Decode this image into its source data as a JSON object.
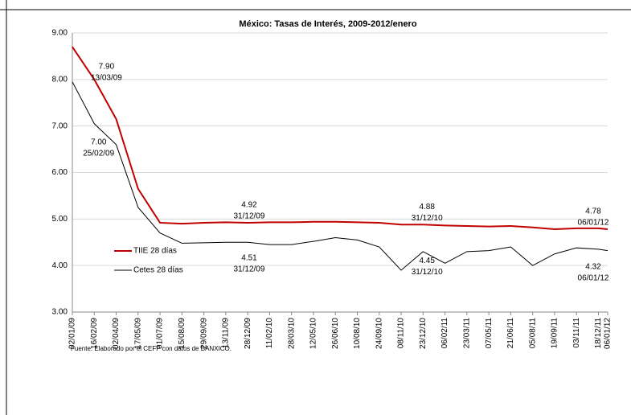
{
  "chart_data": {
    "type": "line",
    "title": "México: Tasas de Interés, 2009-2012/enero",
    "source": "Fuente: Elaborado por el CEFP con datos de BANXICO.",
    "x": [
      "02/01/09",
      "16/02/09",
      "02/04/09",
      "17/05/09",
      "01/07/09",
      "15/08/09",
      "29/09/09",
      "13/11/09",
      "28/12/09",
      "11/02/10",
      "28/03/10",
      "12/05/10",
      "26/06/10",
      "10/08/10",
      "24/09/10",
      "08/11/10",
      "23/12/10",
      "06/02/11",
      "23/03/11",
      "07/05/11",
      "21/06/11",
      "05/08/11",
      "19/09/11",
      "03/11/11",
      "18/12/11",
      "06/01/12"
    ],
    "series": [
      {
        "name": "TIIE 28 días",
        "color": "#c00000",
        "values": [
          8.7,
          8.0,
          7.15,
          5.65,
          4.92,
          4.9,
          4.92,
          4.93,
          4.92,
          4.93,
          4.93,
          4.94,
          4.94,
          4.93,
          4.92,
          4.88,
          4.88,
          4.86,
          4.85,
          4.84,
          4.85,
          4.82,
          4.78,
          4.8,
          4.8,
          4.78
        ],
        "annotations": [
          {
            "value": 7.9,
            "label": "7.90",
            "date": "13/03/09"
          },
          {
            "value": 4.92,
            "label": "4.92",
            "date": "31/12/09"
          },
          {
            "value": 4.88,
            "label": "4.88",
            "date": "31/12/10"
          },
          {
            "value": 4.78,
            "label": "4.78",
            "date": "06/01/12"
          }
        ]
      },
      {
        "name": "Cetes 28 días",
        "color": "#000000",
        "values": [
          7.95,
          7.05,
          6.6,
          5.25,
          4.7,
          4.48,
          4.49,
          4.5,
          4.5,
          4.45,
          4.45,
          4.52,
          4.6,
          4.55,
          4.4,
          3.9,
          4.3,
          4.05,
          4.3,
          4.32,
          4.4,
          4.0,
          4.25,
          4.38,
          4.35,
          4.32
        ],
        "annotations": [
          {
            "value": 7,
            "label": "7.00",
            "date": "25/02/09"
          },
          {
            "value": 4.51,
            "label": "4.51",
            "date": "31/12/09"
          },
          {
            "value": 4.45,
            "label": "4.45",
            "date": "31/12/10"
          },
          {
            "value": 4.32,
            "label": "4.32",
            "date": "06/01/12"
          }
        ]
      }
    ],
    "ylim": [
      3,
      9
    ],
    "yticks": [
      {
        "value": 3,
        "label": "3.00"
      },
      {
        "value": 4,
        "label": "4.00"
      },
      {
        "value": 5,
        "label": "5.00"
      },
      {
        "value": 6,
        "label": "6.00"
      },
      {
        "value": 7,
        "label": "7.00"
      },
      {
        "value": 8,
        "label": "8.00"
      },
      {
        "value": 9,
        "label": "9.00"
      }
    ],
    "grid": true
  }
}
